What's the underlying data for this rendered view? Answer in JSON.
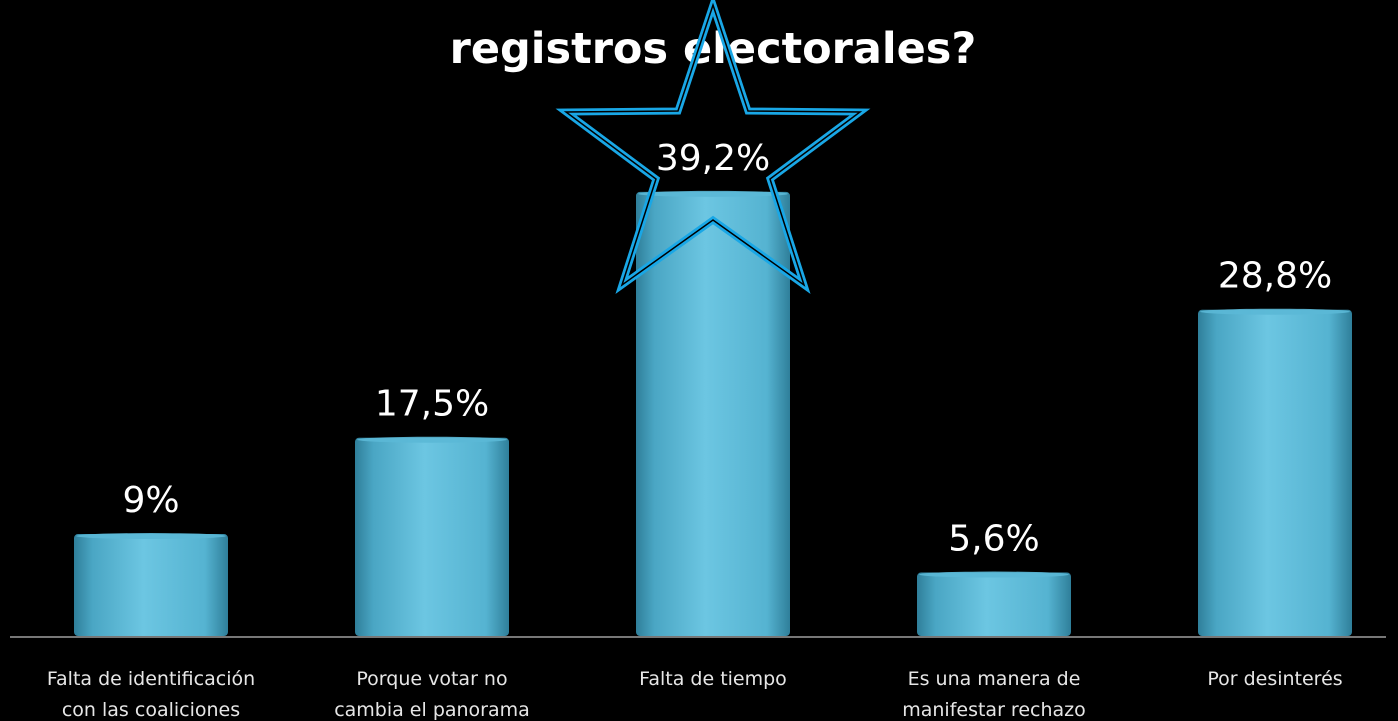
{
  "chart_data": {
    "type": "bar",
    "title": "registros electorales?",
    "categories": [
      "Falta de identificación\ncon las coaliciones",
      "Porque votar no\ncambia el panorama",
      "Falta de tiempo",
      "Es una manera de\nmanifestar rechazo",
      "Por desinterés"
    ],
    "values": [
      9,
      17.5,
      39.2,
      5.6,
      28.8
    ],
    "value_labels": [
      "9%",
      "17,5%",
      "39,2%",
      "5,6%",
      "28,8%"
    ],
    "color": "#5bb8d6"
  }
}
